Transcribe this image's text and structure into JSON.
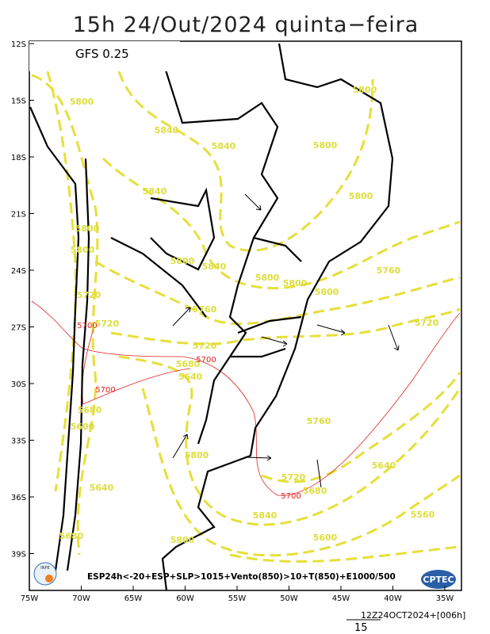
{
  "header": {
    "title": "15h 24/Out/2024 quinta−feira",
    "model": "GFS 0.25"
  },
  "lat_labels": [
    "12S",
    "15S",
    "18S",
    "21S",
    "24S",
    "27S",
    "30S",
    "33S",
    "36S",
    "39S"
  ],
  "lon_labels": [
    "75W",
    "70W",
    "65W",
    "60W",
    "55W",
    "50W",
    "45W",
    "40W",
    "35W"
  ],
  "contour_labels": [
    "5800",
    "5840",
    "5840",
    "5800",
    "5800",
    "5800",
    "5840",
    "5800",
    "5800",
    "5800",
    "5840",
    "5800",
    "5800",
    "5760",
    "5800",
    "5720",
    "5760",
    "5720",
    "5720",
    "5680",
    "5640",
    "5760",
    "5640",
    "5720",
    "5680",
    "5640",
    "5840",
    "5680",
    "5800",
    "5600",
    "5560",
    "5800",
    "5600",
    "5680",
    "5720"
  ],
  "red_labels": [
    "5700",
    "5700",
    "5700",
    "5700"
  ],
  "legend": "ESP24h<-20+ESP+SLP>1015+Vento(850)>10+T(850)+E1000/500",
  "footer": {
    "run": "12Z24OCT2024+[006h]",
    "scale": "15"
  },
  "logos": {
    "left": "INPE",
    "right": "CPTEC"
  }
}
